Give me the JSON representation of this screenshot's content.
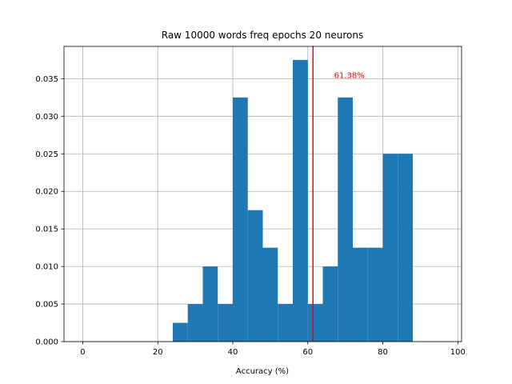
{
  "chart_data": {
    "type": "bar",
    "title": "Raw 10000 words freq epochs 20 neurons",
    "xlabel": "Accuracy (%)",
    "ylabel": "",
    "xlim": [
      -5,
      101
    ],
    "ylim": [
      0,
      0.0393
    ],
    "grid": true,
    "bar_color": "#1f77b4",
    "xticks": [
      0,
      20,
      40,
      60,
      80,
      100
    ],
    "xtick_labels": [
      "0",
      "20",
      "40",
      "60",
      "80",
      "100"
    ],
    "yticks": [
      0.0,
      0.005,
      0.01,
      0.015,
      0.02,
      0.025,
      0.03,
      0.035
    ],
    "ytick_labels": [
      "0.000",
      "0.005",
      "0.010",
      "0.015",
      "0.020",
      "0.025",
      "0.030",
      "0.035"
    ],
    "bins": [
      {
        "x0": 24,
        "x1": 28,
        "value": 0.0025
      },
      {
        "x0": 28,
        "x1": 32,
        "value": 0.005
      },
      {
        "x0": 32,
        "x1": 36,
        "value": 0.01
      },
      {
        "x0": 36,
        "x1": 40,
        "value": 0.005
      },
      {
        "x0": 40,
        "x1": 44,
        "value": 0.0325
      },
      {
        "x0": 44,
        "x1": 48,
        "value": 0.0175
      },
      {
        "x0": 48,
        "x1": 52,
        "value": 0.0125
      },
      {
        "x0": 52,
        "x1": 56,
        "value": 0.005
      },
      {
        "x0": 56,
        "x1": 60,
        "value": 0.0375
      },
      {
        "x0": 60,
        "x1": 64,
        "value": 0.005
      },
      {
        "x0": 64,
        "x1": 68,
        "value": 0.01
      },
      {
        "x0": 68,
        "x1": 72,
        "value": 0.0325
      },
      {
        "x0": 72,
        "x1": 76,
        "value": 0.0125
      },
      {
        "x0": 76,
        "x1": 80,
        "value": 0.0125
      },
      {
        "x0": 80,
        "x1": 84,
        "value": 0.025
      },
      {
        "x0": 84,
        "x1": 88,
        "value": 0.025
      }
    ],
    "annotations": [
      {
        "type": "vline",
        "x": 61.38,
        "color": "#ff0000",
        "label": "61.38%",
        "label_x": 67,
        "label_y": 0.0355
      }
    ]
  }
}
